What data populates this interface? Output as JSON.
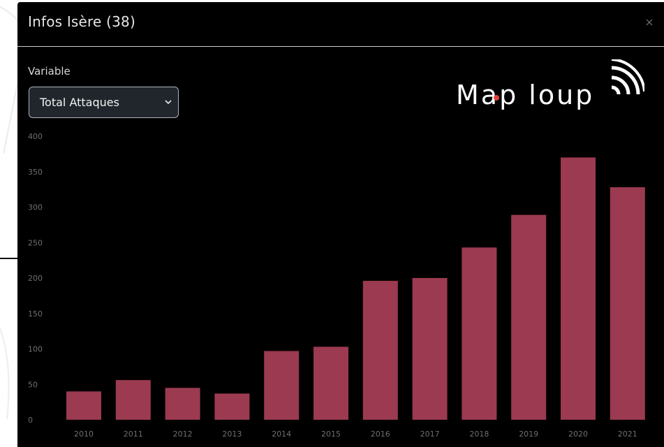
{
  "modal": {
    "title": "Infos Isère (38)",
    "close_icon": "close-icon"
  },
  "controls": {
    "variable_label": "Variable",
    "selected_variable": "Total Attaques"
  },
  "logo": {
    "text": "Map loup",
    "icon": "signal-waves-icon"
  },
  "colors": {
    "bar": "#9b3a50",
    "background": "#000000",
    "tick_text": "#6f6f6f",
    "logo_accent": "#e0413a"
  },
  "chart_data": {
    "type": "bar",
    "categories": [
      "2010",
      "2011",
      "2012",
      "2013",
      "2014",
      "2015",
      "2016",
      "2017",
      "2018",
      "2019",
      "2020",
      "2021"
    ],
    "values": [
      40,
      56,
      45,
      37,
      97,
      103,
      196,
      200,
      243,
      289,
      370,
      328
    ],
    "yticks": [
      "0",
      "50",
      "100",
      "150",
      "200",
      "250",
      "300",
      "350",
      "400"
    ],
    "ylim": [
      0,
      400
    ],
    "grid": false,
    "title": "",
    "xlabel": "",
    "ylabel": ""
  }
}
